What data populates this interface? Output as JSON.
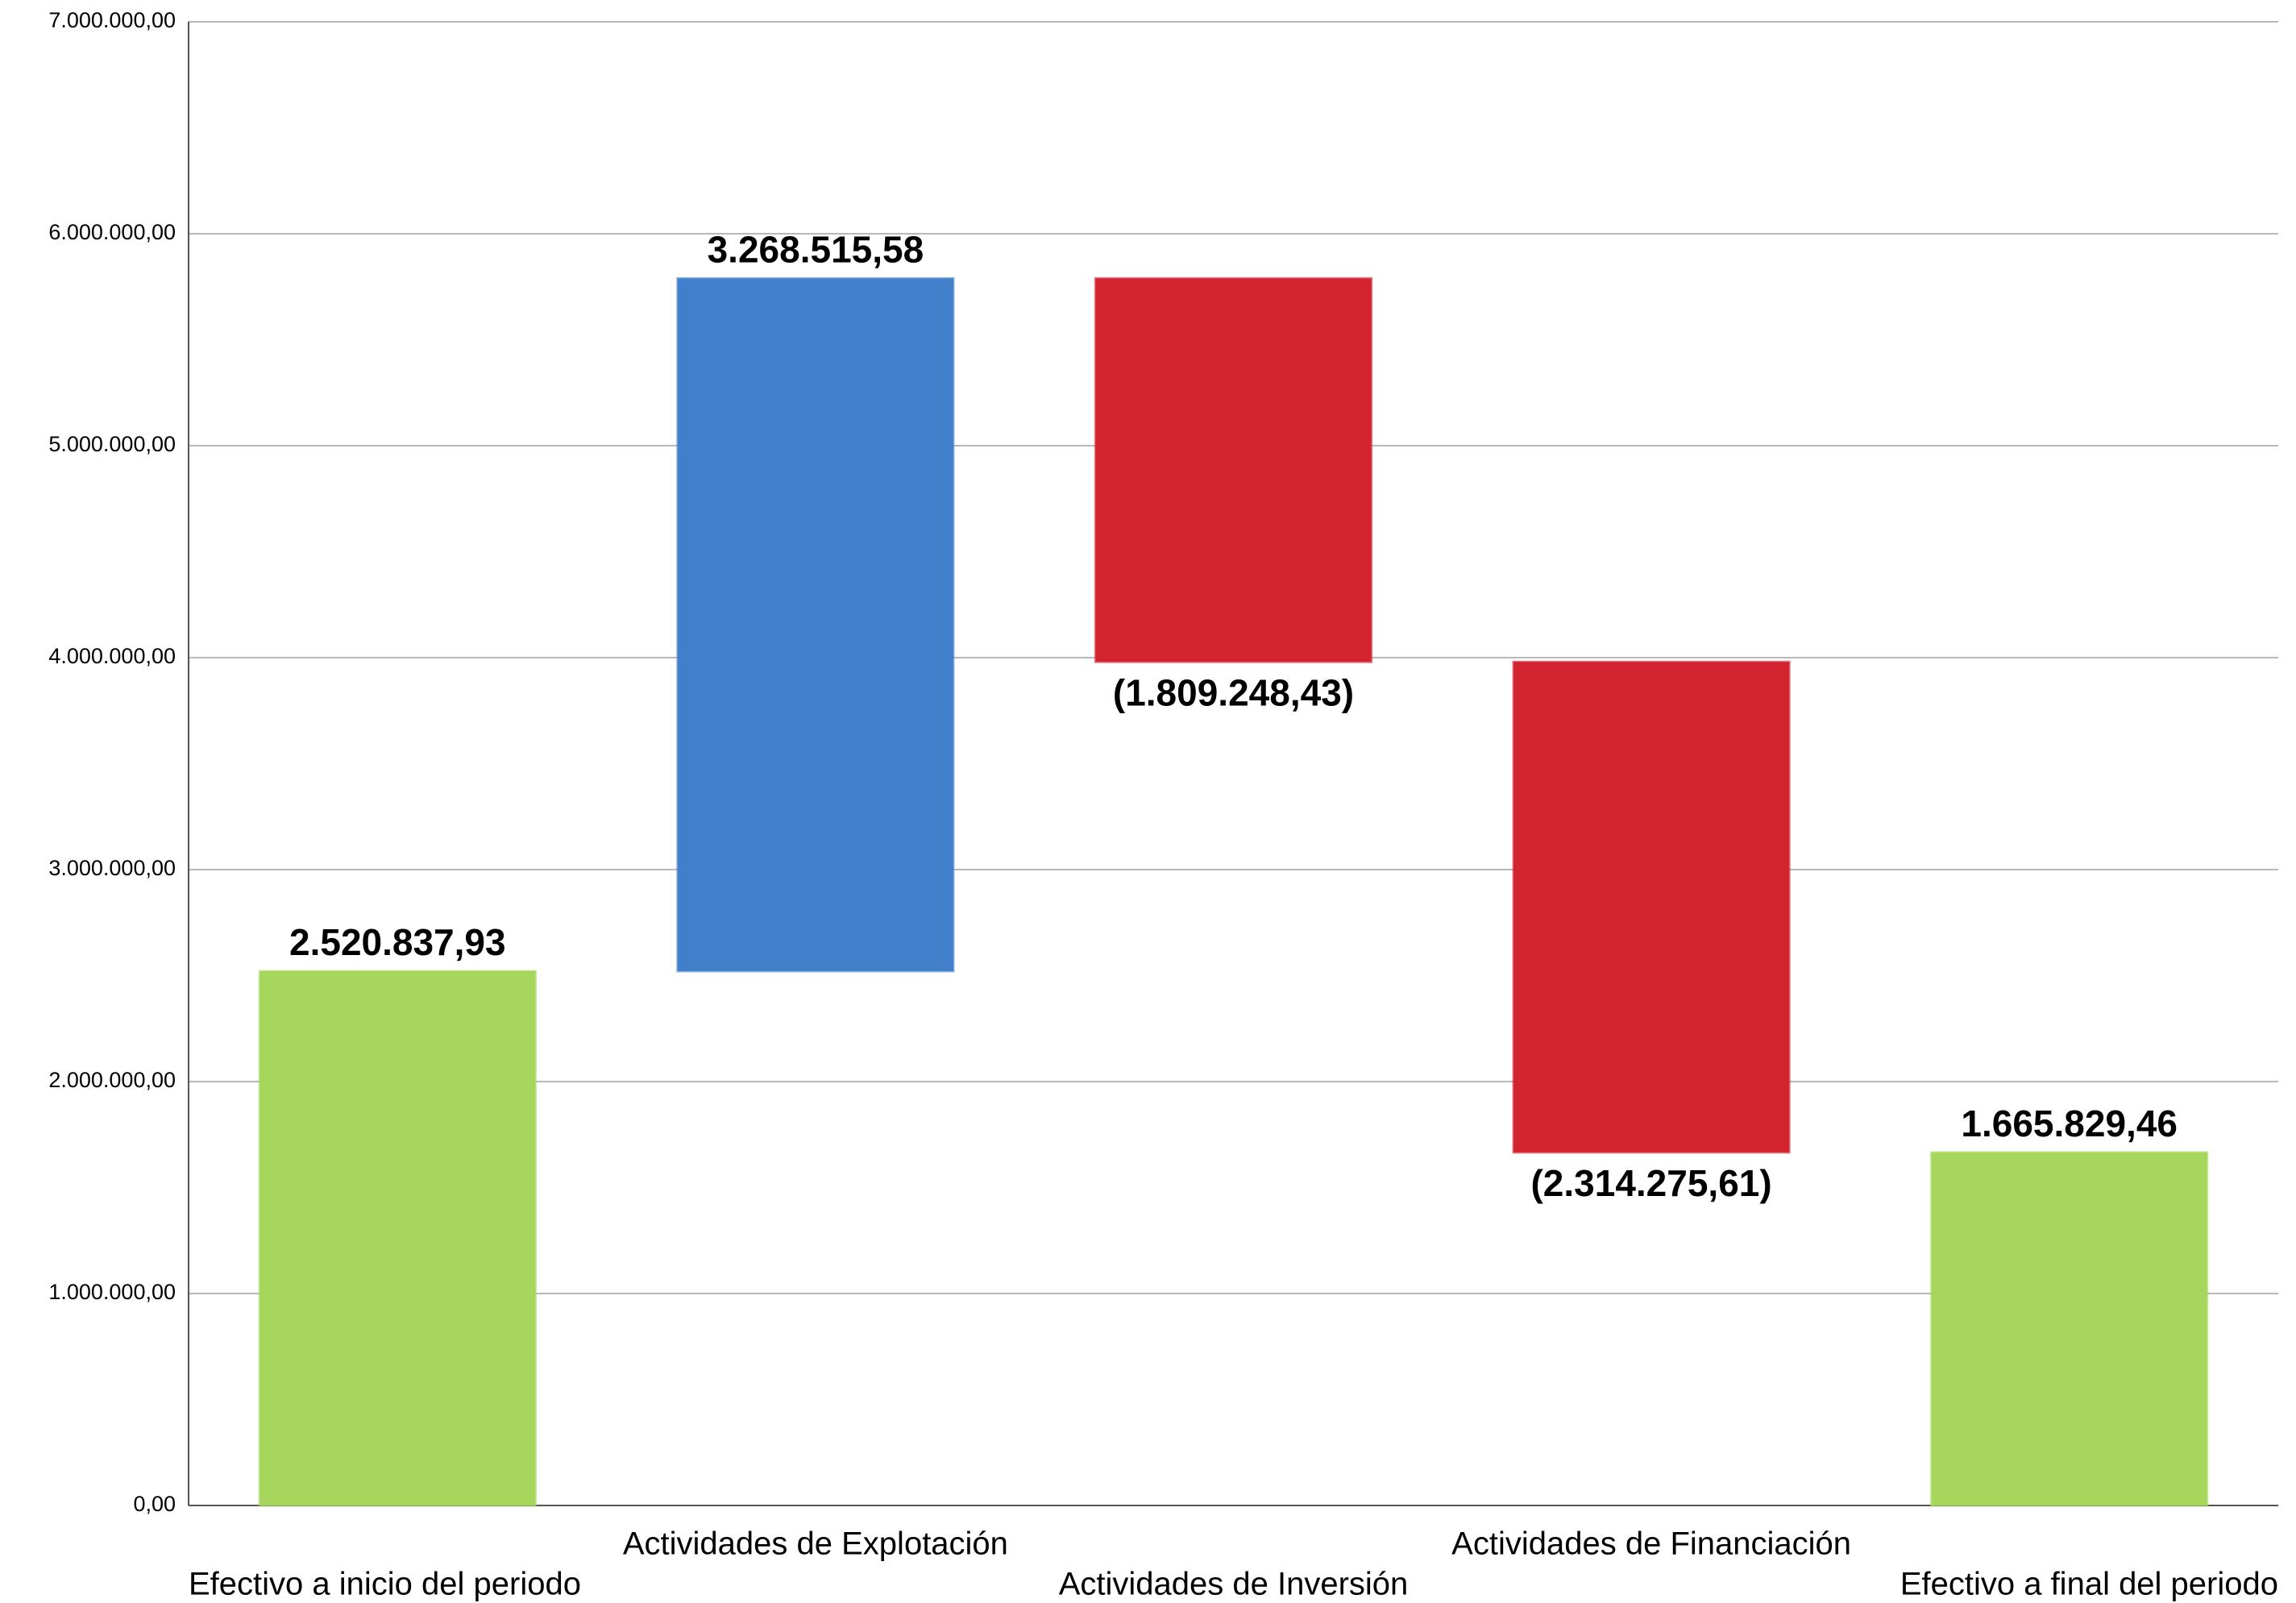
{
  "chart_data": {
    "type": "waterfall",
    "categories": [
      "Efectivo a inicio del periodo",
      "Actividades de Explotación",
      "Actividades de Inversión",
      "Actividades de Financiación",
      "Efectivo a final del periodo"
    ],
    "values": [
      2520837.93,
      3268515.58,
      -1809248.43,
      -2314275.61,
      1665829.46
    ],
    "value_labels": [
      "2.520.837,93",
      "3.268.515,58",
      "(1.809.248,43)",
      "(2.314.275,61)",
      "1.665.829,46"
    ],
    "totals": [
      true,
      false,
      false,
      false,
      true
    ],
    "colors": [
      "#a6d65c",
      "#417fcb",
      "#d2232f",
      "#d2232f",
      "#a6d65c"
    ],
    "ylim": [
      0,
      7000000
    ],
    "yticks": [
      {
        "value": 0,
        "label": "0,00"
      },
      {
        "value": 1000000,
        "label": "1.000.000,00"
      },
      {
        "value": 2000000,
        "label": "2.000.000,00"
      },
      {
        "value": 3000000,
        "label": "3.000.000,00"
      },
      {
        "value": 4000000,
        "label": "4.000.000,00"
      },
      {
        "value": 5000000,
        "label": "5.000.000,00"
      },
      {
        "value": 6000000,
        "label": "6.000.000,00"
      },
      {
        "value": 7000000,
        "label": "7.000.000,00"
      }
    ],
    "grid": true
  }
}
